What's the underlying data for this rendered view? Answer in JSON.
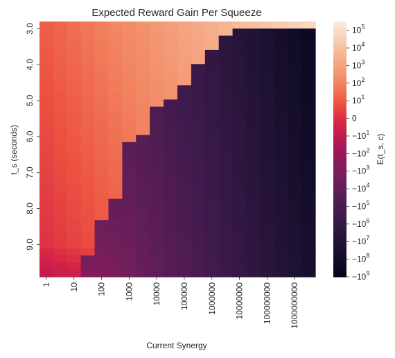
{
  "chart_data": {
    "type": "heatmap",
    "title": "Expected Reward Gain Per Squeeze",
    "xlabel": "Current Synergy",
    "ylabel": "t_s (seconds)",
    "colorbar_label": "E(t_s, c)",
    "x_tick_labels": [
      "1",
      "10",
      "100",
      "1000",
      "10000",
      "100000",
      "1000000",
      "10000000",
      "100000000",
      "1000000000"
    ],
    "y_tick_labels": [
      "3.0",
      "4.0",
      "5.0",
      "6.0",
      "7.0",
      "8.0",
      "9.0"
    ],
    "y_range": [
      2.8,
      9.9
    ],
    "n_columns": 20,
    "n_rows": 36,
    "colorbar_ticks": [
      "10^5",
      "10^4",
      "10^3",
      "10^2",
      "10^1",
      "0",
      "−10^1",
      "−10^2",
      "−10^3",
      "−10^4",
      "−10^5",
      "−10^6",
      "−10^7",
      "−10^8",
      "−10^9"
    ],
    "colorbar_range": [
      -9,
      5.5
    ],
    "colormap": "rocket",
    "boundary_row_by_column": [
      36,
      36,
      36,
      36,
      36,
      36,
      36,
      36,
      36,
      36,
      36,
      36,
      36,
      36,
      36,
      36,
      36,
      36,
      36,
      36
    ],
    "negative_region_start_row_by_column": [
      36,
      36,
      36,
      33,
      28,
      25,
      17,
      16,
      12,
      11,
      9,
      6,
      4,
      2,
      1,
      1,
      1,
      1,
      1,
      1
    ]
  }
}
